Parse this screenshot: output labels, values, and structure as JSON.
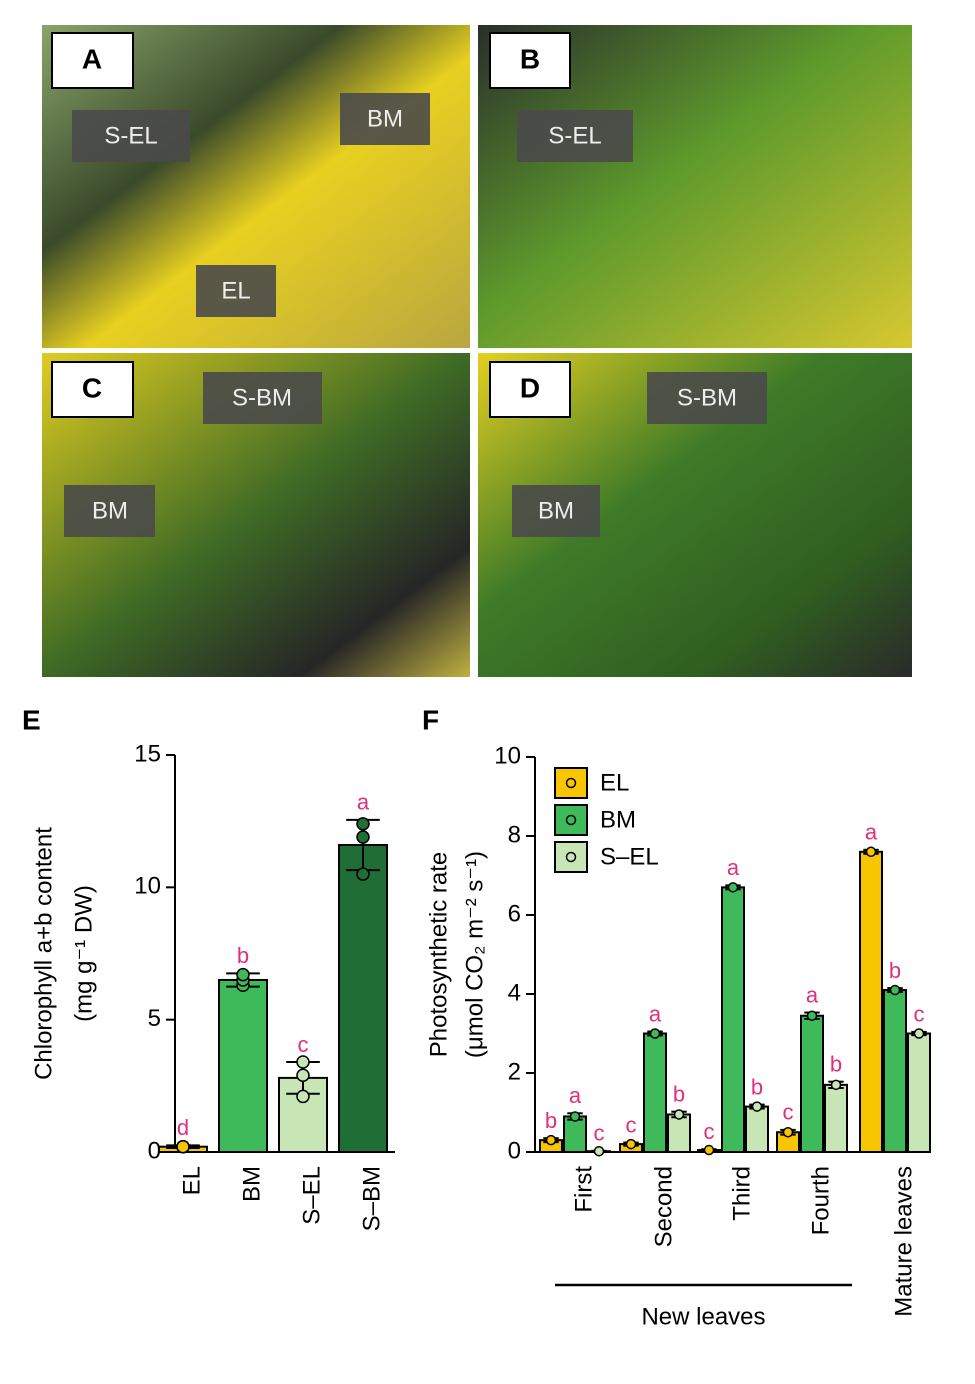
{
  "photo_panels": [
    {
      "letter": "A",
      "labels": [
        "S-EL",
        "BM",
        "EL"
      ]
    },
    {
      "letter": "B",
      "labels": [
        "S-EL"
      ]
    },
    {
      "letter": "C",
      "labels": [
        "S-BM",
        "BM"
      ]
    },
    {
      "letter": "D",
      "labels": [
        "S-BM",
        "BM"
      ]
    }
  ],
  "chart_data": [
    {
      "type": "bar",
      "panel": "E",
      "ylabel": [
        "Chlorophyll a+b content",
        "(mg g⁻¹ DW)"
      ],
      "categories": [
        "EL",
        "BM",
        "S–EL",
        "S–BM"
      ],
      "values": [
        0.2,
        6.5,
        2.8,
        11.6
      ],
      "errors": [
        0.05,
        0.25,
        0.6,
        0.95
      ],
      "points": [
        [
          0.2,
          0.2,
          0.2
        ],
        [
          6.3,
          6.5,
          6.7
        ],
        [
          2.1,
          2.9,
          3.4
        ],
        [
          10.5,
          11.9,
          12.4
        ]
      ],
      "significance": [
        "d",
        "b",
        "c",
        "a"
      ],
      "colors": [
        "#f7c600",
        "#3fba5b",
        "#c8e6b5",
        "#1e6e35"
      ],
      "ylim": [
        0,
        15
      ],
      "yticks": [
        0,
        5,
        10,
        15
      ]
    },
    {
      "type": "grouped_bar",
      "panel": "F",
      "ylabel": [
        "Photosynthetic rate",
        "(μmol CO₂ m⁻² s⁻¹)"
      ],
      "categories": [
        "First",
        "Second",
        "Third",
        "Fourth",
        "Mature leaves"
      ],
      "group_label": "New leaves",
      "series": [
        {
          "name": "EL",
          "color": "#f7c600",
          "values": [
            0.3,
            0.2,
            0.05,
            0.5,
            7.6
          ],
          "errors": [
            0.05,
            0.04,
            0.02,
            0.06,
            0.05
          ],
          "significance": [
            "b",
            "c",
            "c",
            "c",
            "a"
          ]
        },
        {
          "name": "BM",
          "color": "#3fba5b",
          "values": [
            0.9,
            3.0,
            6.7,
            3.45,
            4.1
          ],
          "errors": [
            0.08,
            0.05,
            0.05,
            0.08,
            0.05
          ],
          "significance": [
            "a",
            "a",
            "a",
            "a",
            "b"
          ]
        },
        {
          "name": "S–EL",
          "color": "#c8e6b5",
          "values": [
            0.02,
            0.95,
            1.15,
            1.7,
            3.0
          ],
          "errors": [
            0.01,
            0.07,
            0.05,
            0.08,
            0.04
          ],
          "significance": [
            "c",
            "b",
            "b",
            "b",
            "c"
          ]
        }
      ],
      "legend": "top-left",
      "ylim": [
        0,
        10
      ],
      "yticks": [
        0,
        2,
        4,
        6,
        8,
        10
      ]
    }
  ]
}
